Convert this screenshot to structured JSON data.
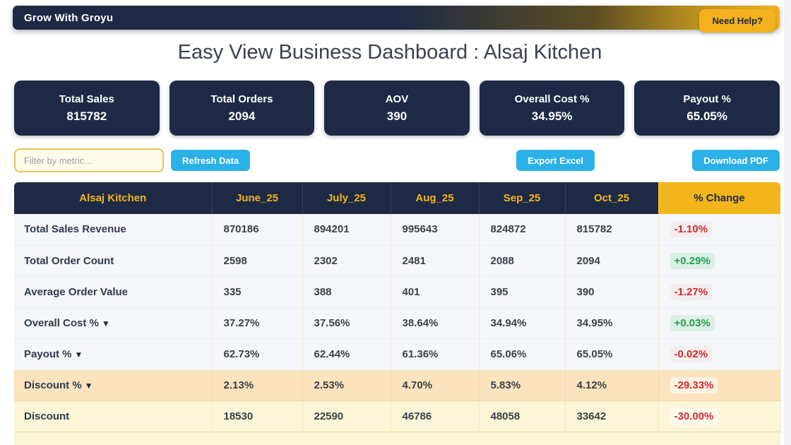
{
  "navbar": {
    "brand": "Grow With Groyu",
    "help_button": "Need Help?"
  },
  "page_title": "Easy View Business Dashboard : Alsaj Kitchen",
  "kpi_cards": [
    {
      "label": "Total Sales",
      "value": "815782"
    },
    {
      "label": "Total Orders",
      "value": "2094"
    },
    {
      "label": "AOV",
      "value": "390"
    },
    {
      "label": "Overall Cost %",
      "value": "34.95%"
    },
    {
      "label": "Payout %",
      "value": "65.05%"
    }
  ],
  "toolbar": {
    "filter_placeholder": "Filter by metric...",
    "refresh_label": "Refresh Data",
    "export_excel_label": "Export Excel",
    "download_pdf_label": "Download PDF"
  },
  "table": {
    "columns": [
      "Alsaj Kitchen",
      "June_25",
      "July_25",
      "Aug_25",
      "Sep_25",
      "Oct_25",
      "% Change"
    ],
    "sort_icon_glyph": "▼",
    "rows": [
      {
        "metric": "Total Sales Revenue",
        "sortable": false,
        "values": [
          "870186",
          "894201",
          "995643",
          "824872",
          "815782"
        ],
        "change": "-1.10%",
        "trend": "down",
        "row_style": "plain",
        "value_style": "default"
      },
      {
        "metric": "Total Order Count",
        "sortable": false,
        "values": [
          "2598",
          "2302",
          "2481",
          "2088",
          "2094"
        ],
        "change": "+0.29%",
        "trend": "up",
        "row_style": "plain",
        "value_style": "default"
      },
      {
        "metric": "Average Order Value",
        "sortable": false,
        "values": [
          "335",
          "388",
          "401",
          "395",
          "390"
        ],
        "change": "-1.27%",
        "trend": "down",
        "row_style": "plain",
        "value_style": "default"
      },
      {
        "metric": "Overall Cost %",
        "sortable": true,
        "values": [
          "37.27%",
          "37.56%",
          "38.64%",
          "34.94%",
          "34.95%"
        ],
        "change": "+0.03%",
        "trend": "up",
        "row_style": "plain",
        "value_style": "default"
      },
      {
        "metric": "Payout %",
        "sortable": true,
        "values": [
          "62.73%",
          "62.44%",
          "61.36%",
          "65.06%",
          "65.05%"
        ],
        "change": "-0.02%",
        "trend": "down",
        "row_style": "plain",
        "value_style": "default"
      },
      {
        "metric": "Discount %",
        "sortable": true,
        "values": [
          "2.13%",
          "2.53%",
          "4.70%",
          "5.83%",
          "4.12%"
        ],
        "change": "-29.33%",
        "trend": "down",
        "row_style": "orange",
        "value_style": "orange"
      },
      {
        "metric": "Discount",
        "sortable": false,
        "values": [
          "18530",
          "22590",
          "46786",
          "48058",
          "33642"
        ],
        "change": "-30.00%",
        "trend": "down",
        "row_style": "yellow",
        "value_style": "default"
      }
    ]
  },
  "colors": {
    "navy": "#1e2a45",
    "gold": "#f2b51c",
    "blue": "#29b1e8",
    "positive": "#1ea34a",
    "negative": "#cf2b2b",
    "orange_value": "#e2691e",
    "orange_row_bg": "#fae3bd",
    "yellow_row_bg": "#fdf5d8"
  }
}
